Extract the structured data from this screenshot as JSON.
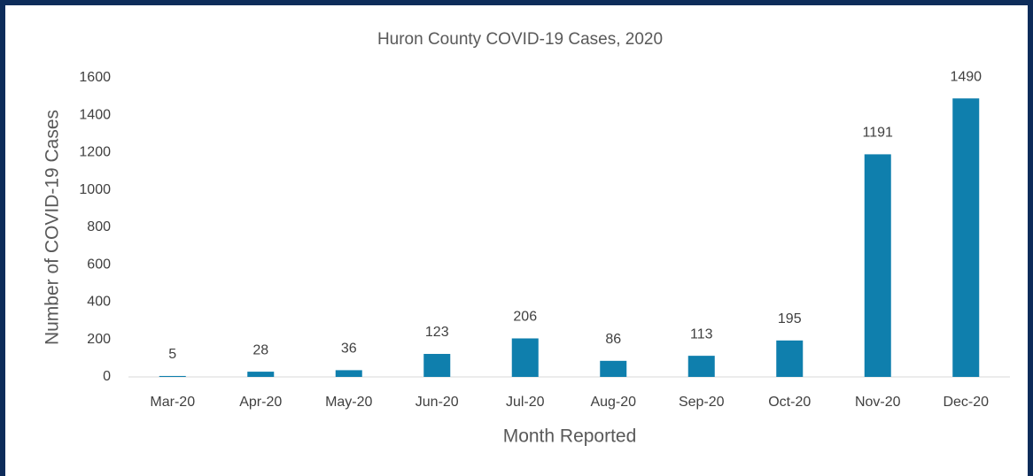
{
  "chart_data": {
    "type": "bar",
    "title": "Huron County COVID-19  Cases,  2020",
    "x_label": "Month Reported",
    "y_label": "Number of COVID-19 Cases",
    "categories": [
      "Mar-20",
      "Apr-20",
      "May-20",
      "Jun-20",
      "Jul-20",
      "Aug-20",
      "Sep-20",
      "Oct-20",
      "Nov-20",
      "Dec-20"
    ],
    "values": [
      5,
      28,
      36,
      123,
      206,
      86,
      113,
      195,
      1191,
      1490
    ],
    "color": "#0f7fad",
    "ylim": [
      0,
      1600
    ],
    "yticks": [
      0,
      200,
      400,
      600,
      800,
      1000,
      1200,
      1400,
      1600
    ],
    "grid": false
  }
}
